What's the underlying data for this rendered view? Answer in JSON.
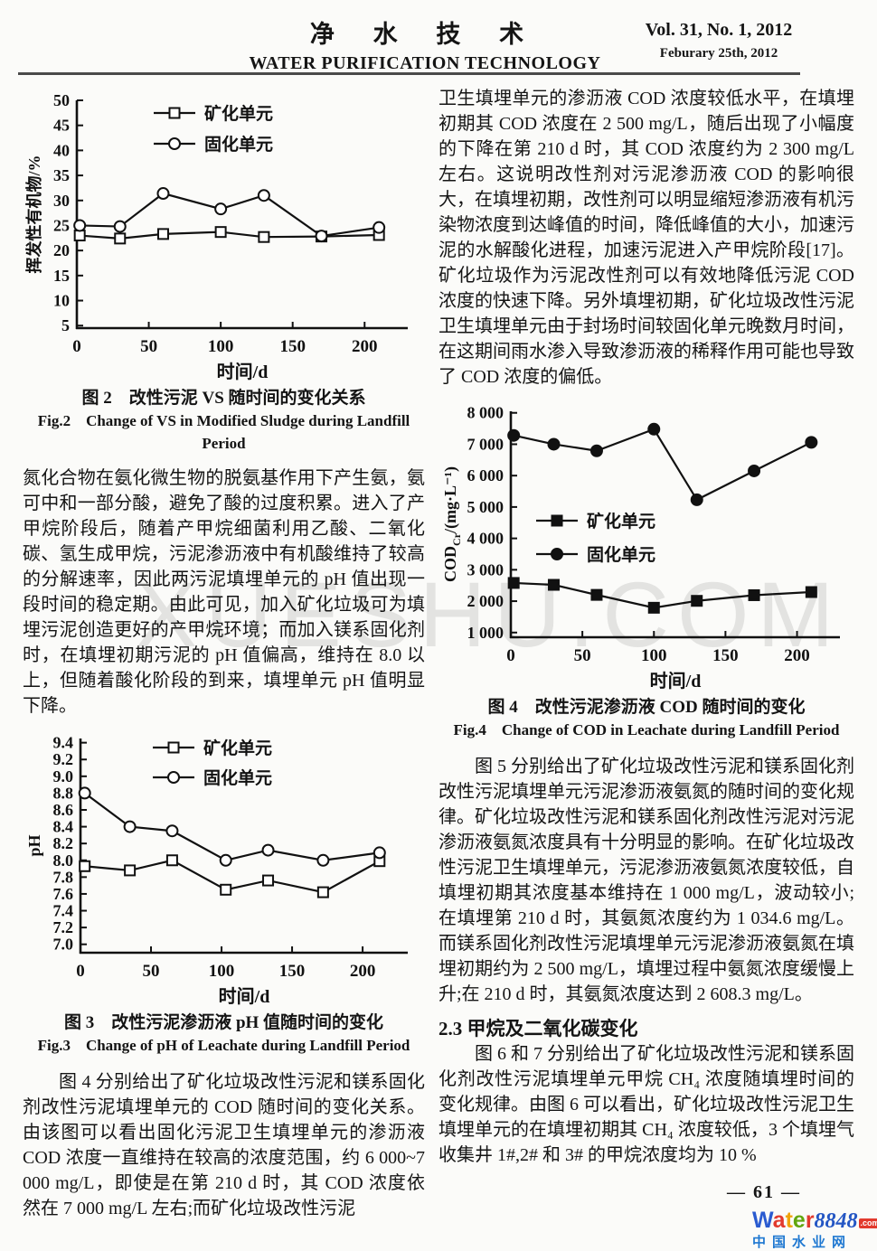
{
  "header": {
    "journal_cn": "净 水 技 术",
    "journal_en": "WATER PURIFICATION TECHNOLOGY",
    "volume": "Vol. 31, No. 1, 2012",
    "date": "Feburary 25th, 2012"
  },
  "watermark": "XUESHU.COM",
  "left_column": {
    "fig2_caption_cn": "图 2　改性污泥 VS 随时间的变化关系",
    "fig2_caption_en": "Fig.2　Change of VS in Modified Sludge during Landfill Period",
    "para1": "氮化合物在氨化微生物的脱氨基作用下产生氨，氨可中和一部分酸，避免了酸的过度积累。进入了产甲烷阶段后，随着产甲烷细菌利用乙酸、二氧化碳、氢生成甲烷，污泥渗沥液中有机酸维持了较高的分解速率，因此两污泥填埋单元的 pH 值出现一段时间的稳定期。由此可见，加入矿化垃圾可为填埋污泥创造更好的产甲烷环境；而加入镁系固化剂时，在填埋初期污泥的 pH 值偏高，维持在 8.0 以上，但随着酸化阶段的到来，填埋单元 pH 值明显下降。",
    "fig3_caption_cn": "图 3　改性污泥渗沥液 pH 值随时间的变化",
    "fig3_caption_en": "Fig.3　Change of pH of Leachate during Landfill Period",
    "para2": "图 4 分别给出了矿化垃圾改性污泥和镁系固化剂改性污泥填埋单元的 COD 随时间的变化关系。由该图可以看出固化污泥卫生填埋单元的渗沥液 COD 浓度一直维持在较高的浓度范围，约 6 000~7 000 mg/L，即使是在第 210 d 时，其 COD 浓度依然在 7 000 mg/L 左右;而矿化垃圾改性污泥"
  },
  "right_column": {
    "para1": "卫生填埋单元的渗沥液 COD 浓度较低水平，在填埋初期其 COD 浓度在 2 500 mg/L，随后出现了小幅度的下降在第 210 d 时，其 COD 浓度约为 2 300 mg/L 左右。这说明改性剂对污泥渗沥液 COD 的影响很大，在填埋初期，改性剂可以明显缩短渗沥液有机污染物浓度到达峰值的时间，降低峰值的大小，加速污泥的水解酸化进程，加速污泥进入产甲烷阶段[17]。矿化垃圾作为污泥改性剂可以有效地降低污泥 COD 浓度的快速下降。另外填埋初期，矿化垃圾改性污泥卫生填埋单元由于封场时间较固化单元晚数月时间，在这期间雨水渗入导致渗沥液的稀释作用可能也导致了 COD 浓度的偏低。",
    "fig4_caption_cn": "图 4　改性污泥渗沥液 COD 随时间的变化",
    "fig4_caption_en": "Fig.4　Change of COD in Leachate during Landfill Period",
    "para2": "图 5 分别给出了矿化垃圾改性污泥和镁系固化剂改性污泥填埋单元污泥渗沥液氨氮的随时间的变化规律。矿化垃圾改性污泥和镁系固化剂改性污泥对污泥渗沥液氨氮浓度具有十分明显的影响。在矿化垃圾改性污泥卫生填埋单元，污泥渗沥液氨氮浓度较低，自填埋初期其浓度基本维持在 1 000 mg/L，波动较小;在填埋第 210 d 时，其氨氮浓度约为 1 034.6  mg/L。而镁系固化剂改性污泥填埋单元污泥渗沥液氨氮在填埋初期约为 2 500 mg/L，填埋过程中氨氮浓度缓慢上升;在 210 d 时，其氨氮浓度达到 2 608.3 mg/L。",
    "section_heading": "2.3 甲烷及二氧化碳变化",
    "para3": "图 6 和 7 分别给出了矿化垃圾改性污泥和镁系固化剂改性污泥填埋单元甲烷 CH₄ 浓度随填埋时间的变化规律。由图 6 可以看出，矿化垃圾改性污泥卫生填埋单元的在填埋初期其 CH₄ 浓度较低，3 个填埋气收集井 1#,2# 和 3# 的甲烷浓度均为 10 %"
  },
  "footer": {
    "page_number": "— 61 —",
    "logo": {
      "letters": [
        {
          "ch": "W",
          "color": "#2a5bd0"
        },
        {
          "ch": "a",
          "color": "#e23a2e"
        },
        {
          "ch": "t",
          "color": "#f0a30a"
        },
        {
          "ch": "e",
          "color": "#61a60e"
        },
        {
          "ch": "r",
          "color": "#e23a2e"
        }
      ],
      "number": "8848",
      "number_color": "#2456c4",
      "dotcom": ".com",
      "dotcom_color": "#e23a2e",
      "site": "中国水业网",
      "site_color": "#1f78d1"
    }
  },
  "chart_data": [
    {
      "id": "fig2",
      "type": "line",
      "title": "改性污泥 VS 随时间的变化关系",
      "xlabel": "时间/d",
      "ylabel": "挥发性有机物/%",
      "xlim": [
        0,
        230
      ],
      "ylim": [
        4.5,
        50
      ],
      "xticks": [
        0,
        50,
        100,
        150,
        200
      ],
      "yticks": [
        5,
        10,
        15,
        20,
        25,
        30,
        35,
        40,
        45,
        50
      ],
      "ytick_labels": [
        "5",
        "10",
        "15",
        "20",
        "25",
        "30",
        "35",
        "40",
        "45",
        "50"
      ],
      "grid": false,
      "legend_position": "top-inside",
      "series": [
        {
          "name": "矿化单元",
          "marker": "square-open",
          "x": [
            2,
            30,
            60,
            100,
            130,
            170,
            210
          ],
          "y": [
            23.0,
            22.4,
            23.3,
            23.7,
            22.7,
            22.8,
            23.1
          ]
        },
        {
          "name": "固化单元",
          "marker": "circle-open",
          "x": [
            2,
            30,
            60,
            100,
            130,
            170,
            210
          ],
          "y": [
            25.0,
            24.8,
            31.4,
            28.3,
            31.0,
            22.9,
            24.6
          ]
        }
      ]
    },
    {
      "id": "fig3",
      "type": "line",
      "title": "改性污泥渗沥液 pH 值随时间的变化",
      "xlabel": "时间/d",
      "ylabel": "pH",
      "xlim": [
        0,
        232
      ],
      "ylim": [
        6.9,
        9.45
      ],
      "xticks": [
        0,
        50,
        100,
        150,
        200
      ],
      "yticks": [
        7.0,
        7.2,
        7.4,
        7.6,
        7.8,
        8.0,
        8.2,
        8.4,
        8.6,
        8.8,
        9.0,
        9.2,
        9.4
      ],
      "ytick_labels": [
        "7.0",
        "7.2",
        "7.4",
        "7.6",
        "7.8",
        "8.0",
        "8.2",
        "8.4",
        "8.6",
        "8.8",
        "9.0",
        "9.2",
        "9.4"
      ],
      "grid": false,
      "legend_position": "top-inside",
      "series": [
        {
          "name": "矿化单元",
          "marker": "square-open",
          "x": [
            3,
            35,
            65,
            103,
            133,
            172,
            212
          ],
          "y": [
            7.93,
            7.88,
            8.0,
            7.65,
            7.76,
            7.62,
            7.99
          ]
        },
        {
          "name": "固化单元",
          "marker": "circle-open",
          "x": [
            3,
            35,
            65,
            103,
            133,
            172,
            212
          ],
          "y": [
            8.8,
            8.4,
            8.35,
            8.0,
            8.12,
            8.0,
            8.09
          ]
        }
      ]
    },
    {
      "id": "fig4",
      "type": "line",
      "title": "改性污泥渗沥液 COD 随时间的变化",
      "xlabel": "时间/d",
      "ylabel": "COD_{Cr}/(mg·L⁻¹)",
      "xlim": [
        0,
        230
      ],
      "ylim": [
        850,
        8050
      ],
      "xticks": [
        0,
        50,
        100,
        150,
        200
      ],
      "yticks": [
        1000,
        2000,
        3000,
        4000,
        5000,
        6000,
        7000,
        8000
      ],
      "ytick_labels": [
        "1 000",
        "2 000",
        "3 000",
        "4 000",
        "5 000",
        "6 000",
        "7 000",
        "8 000"
      ],
      "grid": false,
      "legend_position": "middle-left-inside",
      "series": [
        {
          "name": "矿化单元",
          "marker": "square-filled",
          "x": [
            2,
            30,
            60,
            100,
            130,
            170,
            210
          ],
          "y": [
            2580,
            2520,
            2200,
            1790,
            2010,
            2190,
            2290
          ]
        },
        {
          "name": "固化单元",
          "marker": "circle-filled",
          "x": [
            2,
            30,
            60,
            100,
            130,
            170,
            210
          ],
          "y": [
            7280,
            7000,
            6790,
            7480,
            5230,
            6150,
            7060
          ]
        }
      ]
    }
  ]
}
